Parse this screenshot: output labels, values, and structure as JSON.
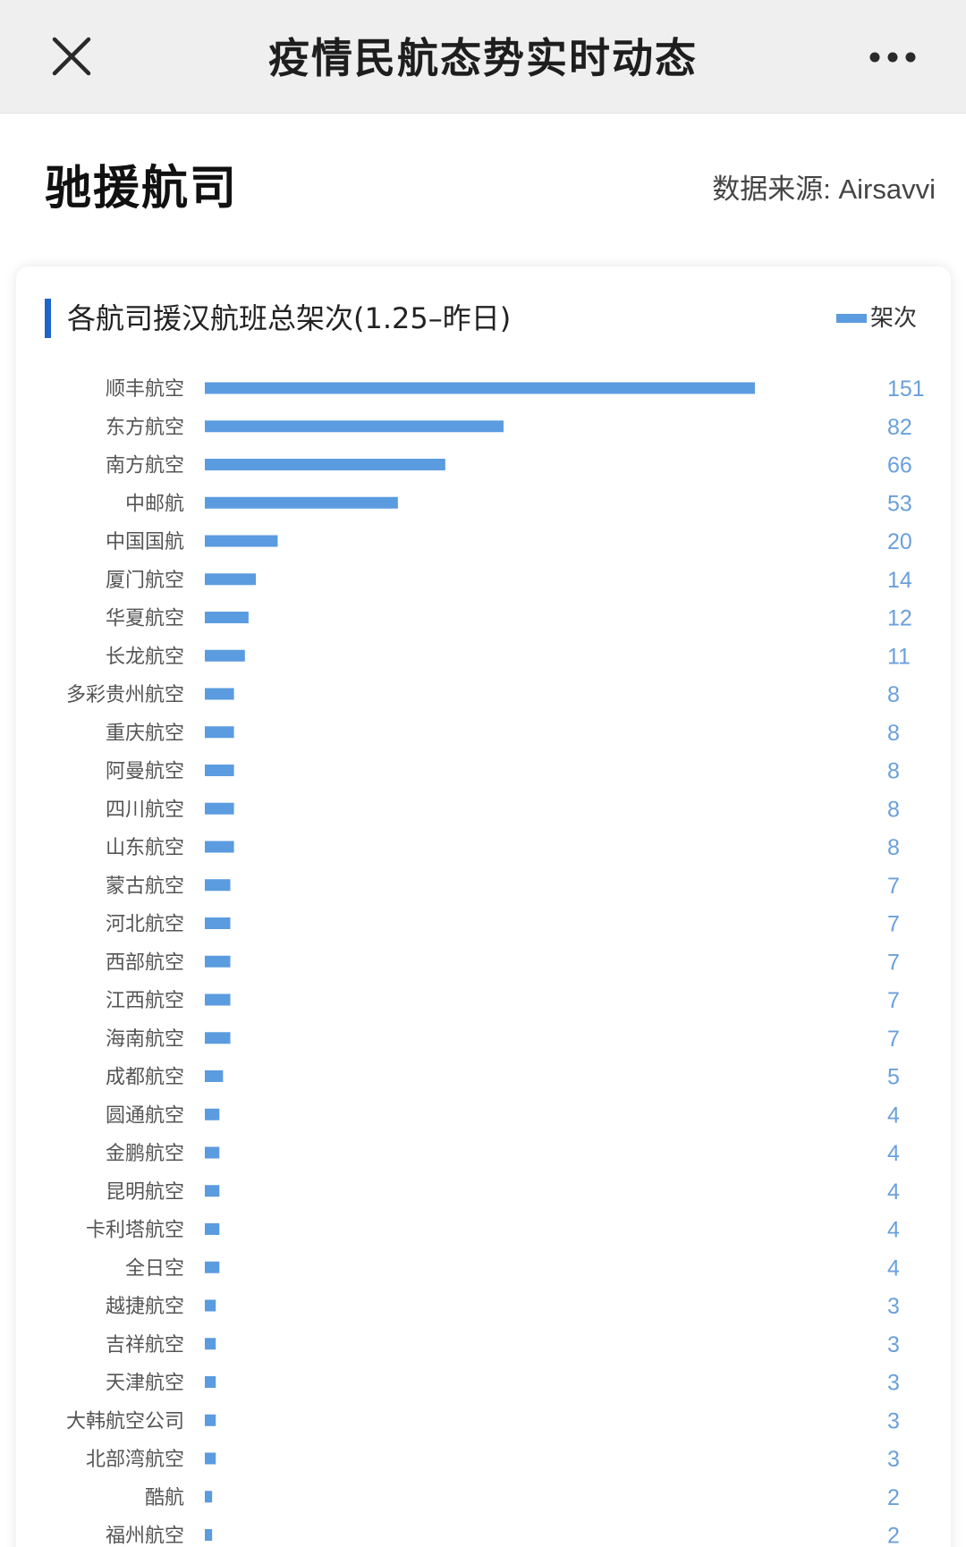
{
  "topbar": {
    "title": "疫情民航态势实时动态",
    "close_icon": "close-icon",
    "more_icon": "more-icon"
  },
  "section": {
    "title": "驰援航司",
    "source": "数据来源: Airsavvi"
  },
  "colors": {
    "bar": "#5b9bdf",
    "accent": "#1f64c8",
    "value_text": "#6aa0dc"
  },
  "chart_data": {
    "type": "bar",
    "orientation": "horizontal",
    "title": "各航司援汉航班总架次(1.25–昨日)",
    "legend": [
      "架次"
    ],
    "legend_position": "top-right",
    "grid": false,
    "xlim": [
      0,
      151
    ],
    "categories": [
      "顺丰航空",
      "东方航空",
      "南方航空",
      "中邮航",
      "中国国航",
      "厦门航空",
      "华夏航空",
      "长龙航空",
      "多彩贵州航空",
      "重庆航空",
      "阿曼航空",
      "四川航空",
      "山东航空",
      "蒙古航空",
      "河北航空",
      "西部航空",
      "江西航空",
      "海南航空",
      "成都航空",
      "圆通航空",
      "金鹏航空",
      "昆明航空",
      "卡利塔航空",
      "全日空",
      "越捷航空",
      "吉祥航空",
      "天津航空",
      "大韩航空公司",
      "北部湾航空",
      "酷航",
      "福州航空"
    ],
    "series": [
      {
        "name": "架次",
        "values": [
          151,
          82,
          66,
          53,
          20,
          14,
          12,
          11,
          8,
          8,
          8,
          8,
          8,
          7,
          7,
          7,
          7,
          7,
          5,
          4,
          4,
          4,
          4,
          4,
          3,
          3,
          3,
          3,
          3,
          2,
          2
        ]
      }
    ]
  }
}
